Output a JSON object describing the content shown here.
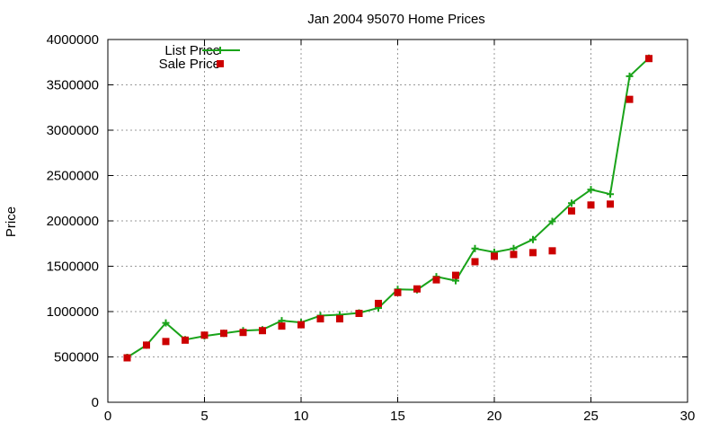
{
  "chart_data": {
    "type": "line",
    "title": "Jan 2004 95070 Home Prices",
    "xlabel": "",
    "ylabel": "Price",
    "xlim": [
      0,
      30
    ],
    "ylim": [
      0,
      4000000
    ],
    "xticks": [
      "0",
      "5",
      "10",
      "15",
      "20",
      "25",
      "30"
    ],
    "yticks": [
      "0",
      "500000",
      "1000000",
      "1500000",
      "2000000",
      "2500000",
      "3000000",
      "3500000",
      "4000000"
    ],
    "grid": true,
    "legend_position": "top-left",
    "series": [
      {
        "name": "List Price",
        "style": "line-with-plus-markers",
        "color": "#1aa31a",
        "x": [
          1,
          2,
          3,
          4,
          5,
          6,
          7,
          8,
          9,
          10,
          11,
          12,
          13,
          14,
          15,
          16,
          17,
          18,
          19,
          20,
          21,
          22,
          23,
          24,
          25,
          26,
          27,
          28
        ],
        "values": [
          495000,
          630000,
          875000,
          690000,
          730000,
          760000,
          790000,
          800000,
          900000,
          880000,
          955000,
          965000,
          985000,
          1040000,
          1245000,
          1240000,
          1385000,
          1340000,
          1695000,
          1655000,
          1695000,
          1795000,
          1995000,
          2195000,
          2345000,
          2295000,
          3595000,
          3795000
        ]
      },
      {
        "name": "Sale Price",
        "style": "square-markers",
        "color": "#cc0000",
        "x": [
          1,
          2,
          3,
          4,
          5,
          6,
          7,
          8,
          9,
          10,
          11,
          12,
          13,
          14,
          15,
          16,
          17,
          18,
          19,
          20,
          21,
          22,
          23,
          24,
          25,
          26,
          27,
          28
        ],
        "values": [
          490000,
          630000,
          670000,
          685000,
          740000,
          760000,
          770000,
          790000,
          840000,
          855000,
          920000,
          920000,
          980000,
          1090000,
          1210000,
          1250000,
          1350000,
          1400000,
          1550000,
          1610000,
          1630000,
          1650000,
          1670000,
          2110000,
          2175000,
          2185000,
          3340000,
          3790000
        ]
      }
    ]
  }
}
